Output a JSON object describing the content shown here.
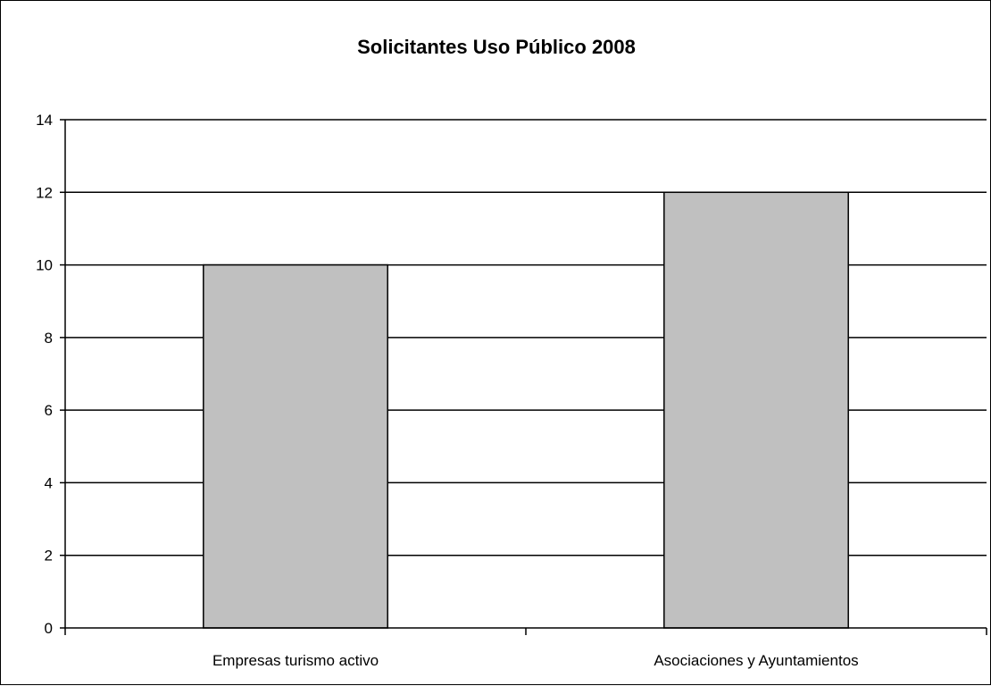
{
  "chart_data": {
    "type": "bar",
    "title": "Solicitantes Uso Público 2008",
    "xlabel": "",
    "ylabel": "",
    "categories": [
      "Empresas turismo activo",
      "Asociaciones y Ayuntamientos"
    ],
    "values": [
      10,
      12
    ],
    "ylim": [
      0,
      14
    ],
    "yticks": [
      "0",
      "2",
      "4",
      "6",
      "8",
      "10",
      "12",
      "14"
    ],
    "grid": true,
    "legend": "none",
    "colors": {
      "bar_fill": "#c0c0c0",
      "bar_stroke": "#000000",
      "grid": "#000000",
      "axis": "#000000"
    }
  }
}
